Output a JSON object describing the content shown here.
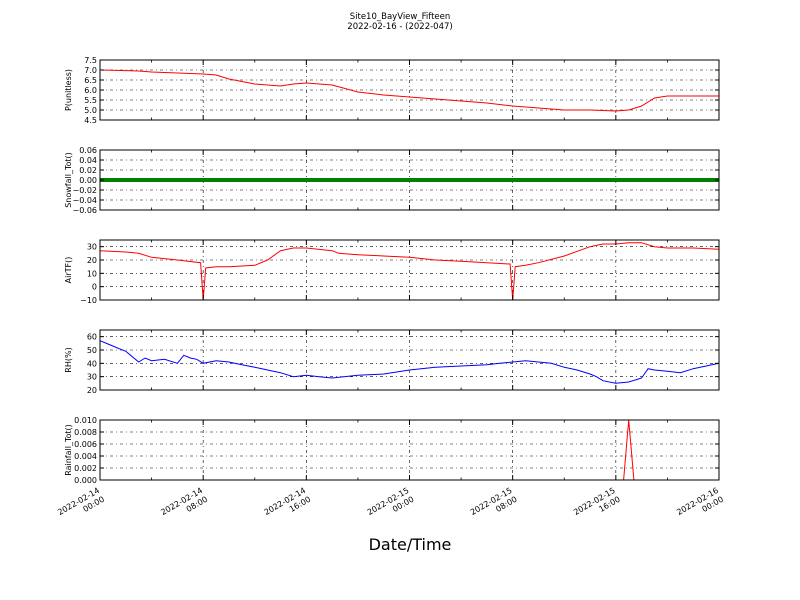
{
  "figure": {
    "title_line1": "Site10_BayView_Fifteen",
    "title_line2": "2022-02-16 - (2022-047)",
    "xlabel": "Date/Time",
    "x_tick_labels": [
      [
        "2022-02-14",
        "00:00"
      ],
      [
        "2022-02-14",
        "08:00"
      ],
      [
        "2022-02-14",
        "16:00"
      ],
      [
        "2022-02-15",
        "00:00"
      ],
      [
        "2022-02-15",
        "08:00"
      ],
      [
        "2022-02-15",
        "16:00"
      ],
      [
        "2022-02-16",
        "00:00"
      ]
    ]
  },
  "chart_data": [
    {
      "type": "line",
      "ylabel": "P(unitless)",
      "color": "#ff0000",
      "ylim": [
        4.5,
        7.5
      ],
      "yticks": [
        4.5,
        5.0,
        5.5,
        6.0,
        6.5,
        7.0,
        7.5
      ],
      "ytick_labels": [
        "4.5",
        "5.0",
        "5.5",
        "6.0",
        "6.5",
        "7.0",
        "7.5"
      ],
      "grid": true,
      "x_hours": [
        0,
        2,
        3,
        4,
        6,
        8,
        9,
        10,
        12,
        14,
        15,
        16,
        18,
        20,
        22,
        24,
        26,
        28,
        30,
        32,
        34,
        36,
        38,
        40,
        41,
        42,
        43,
        44,
        46,
        48
      ],
      "values": [
        7.0,
        6.97,
        6.95,
        6.9,
        6.85,
        6.8,
        6.75,
        6.55,
        6.3,
        6.2,
        6.3,
        6.35,
        6.25,
        5.9,
        5.75,
        5.65,
        5.55,
        5.45,
        5.35,
        5.2,
        5.1,
        5.0,
        5.0,
        4.95,
        5.0,
        5.2,
        5.6,
        5.7,
        5.7,
        5.7
      ]
    },
    {
      "type": "line",
      "ylabel": "Snowfall_Tot()",
      "color": "#008000",
      "ylim": [
        -0.06,
        0.06
      ],
      "yticks": [
        -0.06,
        -0.04,
        -0.02,
        0.0,
        0.02,
        0.04,
        0.06
      ],
      "ytick_labels": [
        "−0.06",
        "−0.04",
        "−0.02",
        "0.00",
        "0.02",
        "0.04",
        "0.06"
      ],
      "grid": true,
      "x_hours": [
        0,
        48
      ],
      "values": [
        0.0,
        0.0
      ]
    },
    {
      "type": "line",
      "ylabel": "AirTF()",
      "color": "#ff0000",
      "ylim": [
        -10,
        35
      ],
      "yticks": [
        -10,
        0,
        10,
        20,
        30
      ],
      "ytick_labels": [
        "−10",
        "0",
        "10",
        "20",
        "30"
      ],
      "grid": true,
      "x_hours": [
        0,
        2,
        3,
        4,
        6,
        7.8,
        8,
        8.2,
        9,
        10,
        12,
        13,
        14,
        15,
        16,
        18,
        18.5,
        20,
        22,
        24,
        26,
        28,
        30,
        31.8,
        32,
        32.2,
        33,
        34,
        36,
        38,
        39,
        40,
        41,
        42,
        43,
        44,
        46,
        48
      ],
      "values": [
        27,
        26,
        25,
        22,
        20,
        18,
        -10,
        14,
        15,
        15,
        16,
        20,
        27,
        29,
        29,
        27,
        25,
        24,
        23,
        22,
        20,
        19,
        18,
        17,
        -10,
        15,
        16,
        18,
        23,
        30,
        32,
        32,
        33,
        33,
        30,
        29,
        29,
        28
      ]
    },
    {
      "type": "line",
      "ylabel": "RH(%)",
      "color": "#0000ff",
      "ylim": [
        20,
        65
      ],
      "yticks": [
        20,
        30,
        40,
        50,
        60
      ],
      "ytick_labels": [
        "20",
        "30",
        "40",
        "50",
        "60"
      ],
      "grid": true,
      "x_hours": [
        0,
        1,
        1.5,
        2,
        3,
        3.5,
        4,
        5,
        6,
        6.5,
        7,
        7.5,
        8,
        9,
        10,
        11,
        12,
        13,
        14,
        15,
        16,
        17,
        18,
        20,
        22,
        24,
        26,
        28,
        30,
        31,
        32,
        33,
        34,
        35,
        36,
        37,
        38,
        38.5,
        39,
        40,
        41,
        42,
        42.5,
        43,
        44,
        45,
        46,
        47,
        48
      ],
      "values": [
        57,
        53,
        51,
        49,
        41,
        44,
        42,
        43,
        40,
        46,
        44,
        43,
        40,
        42,
        41,
        39,
        37,
        35,
        33,
        30,
        31,
        30,
        29,
        31,
        32,
        35,
        37,
        38,
        39,
        40,
        41,
        42,
        41,
        40,
        37,
        35,
        32,
        30,
        27,
        25,
        26,
        29,
        36,
        35,
        34,
        33,
        36,
        38,
        40
      ]
    },
    {
      "type": "line",
      "ylabel": "Rainfall_Tot()",
      "color": "#ff0000",
      "ylim": [
        0.0,
        0.01
      ],
      "yticks": [
        0.0,
        0.002,
        0.004,
        0.006,
        0.008,
        0.01
      ],
      "ytick_labels": [
        "0.000",
        "0.002",
        "0.004",
        "0.006",
        "0.008",
        "0.010"
      ],
      "grid": true,
      "x_hours": [
        0,
        40.6,
        41.0,
        41.4,
        48
      ],
      "values": [
        0.0,
        0.0,
        0.01,
        0.0,
        0.0
      ]
    }
  ]
}
